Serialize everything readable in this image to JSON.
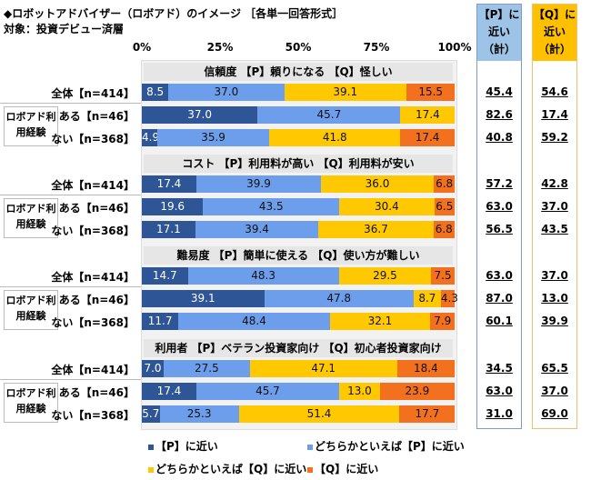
{
  "chart_data": {
    "type": "bar",
    "stacked": true,
    "orientation": "horizontal",
    "title": "◆ロボットアドバイザー（ロボアド）のイメージ ［各単一回答形式］",
    "subtitle": "対象：投資デビュー済層",
    "xlim": [
      0,
      100
    ],
    "xticks": [
      "0%",
      "25%",
      "50%",
      "75%",
      "100%"
    ],
    "group_label": "ロボアド利用経験",
    "legend": [
      {
        "name": "【P】に近い",
        "color": "#2e5596"
      },
      {
        "name": "どちらかといえば【P】に近い",
        "color": "#6d9eeb"
      },
      {
        "name": "どちらかといえば【Q】に近い",
        "color": "#ffc800"
      },
      {
        "name": "【Q】に近い",
        "color": "#f2701e"
      }
    ],
    "total_headers": {
      "p": "【P】に近い（計）",
      "q": "【Q】に近い（計）"
    },
    "sections": [
      {
        "title": "信頼度 【P】頼りになる 【Q】怪しい",
        "rows": [
          {
            "label": "全体【n=414】",
            "values": [
              8.5,
              37.0,
              39.1,
              15.5
            ],
            "p_total": "45.4",
            "q_total": "54.6"
          },
          {
            "label": "ある【n=46】",
            "values": [
              37.0,
              45.7,
              17.4,
              0
            ],
            "p_total": "82.6",
            "q_total": "17.4"
          },
          {
            "label": "ない【n=368】",
            "values": [
              4.9,
              35.9,
              41.8,
              17.4
            ],
            "p_total": "40.8",
            "q_total": "59.2"
          }
        ]
      },
      {
        "title": "コスト 【P】利用料が高い 【Q】利用料が安い",
        "rows": [
          {
            "label": "全体【n=414】",
            "values": [
              17.4,
              39.9,
              36.0,
              6.8
            ],
            "p_total": "57.2",
            "q_total": "42.8"
          },
          {
            "label": "ある【n=46】",
            "values": [
              19.6,
              43.5,
              30.4,
              6.5
            ],
            "p_total": "63.0",
            "q_total": "37.0"
          },
          {
            "label": "ない【n=368】",
            "values": [
              17.1,
              39.4,
              36.7,
              6.8
            ],
            "p_total": "56.5",
            "q_total": "43.5"
          }
        ]
      },
      {
        "title": "難易度 【P】簡単に使える 【Q】使い方が難しい",
        "rows": [
          {
            "label": "全体【n=414】",
            "values": [
              14.7,
              48.3,
              29.5,
              7.5
            ],
            "p_total": "63.0",
            "q_total": "37.0"
          },
          {
            "label": "ある【n=46】",
            "values": [
              39.1,
              47.8,
              8.7,
              4.3
            ],
            "p_total": "87.0",
            "q_total": "13.0"
          },
          {
            "label": "ない【n=368】",
            "values": [
              11.7,
              48.4,
              32.1,
              7.9
            ],
            "p_total": "60.1",
            "q_total": "39.9"
          }
        ]
      },
      {
        "title": "利用者 【P】ベテラン投資家向け 【Q】初心者投資家向け",
        "rows": [
          {
            "label": "全体【n=414】",
            "values": [
              7.0,
              27.5,
              47.1,
              18.4
            ],
            "p_total": "34.5",
            "q_total": "65.5"
          },
          {
            "label": "ある【n=46】",
            "values": [
              17.4,
              45.7,
              13.0,
              23.9
            ],
            "p_total": "63.0",
            "q_total": "37.0"
          },
          {
            "label": "ない【n=368】",
            "values": [
              5.7,
              25.3,
              51.4,
              17.7
            ],
            "p_total": "31.0",
            "q_total": "69.0"
          }
        ]
      }
    ]
  }
}
